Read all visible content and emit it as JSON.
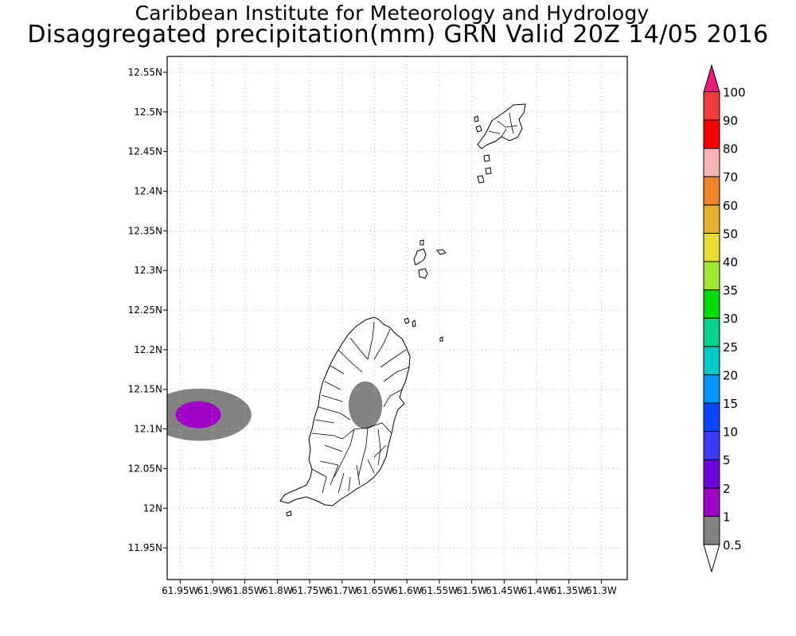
{
  "header": {
    "title": "Caribbean Institute for Meteorology and Hydrology",
    "subtitle": "Disaggregated precipitation(mm) GRN Valid 20Z 14/05 2016"
  },
  "map": {
    "lon_range": [
      -61.97,
      -61.26
    ],
    "lat_range": [
      11.91,
      12.57
    ],
    "lat_ticks": [
      {
        "value": 12.55,
        "label": "12.55N"
      },
      {
        "value": 12.5,
        "label": "12.5N"
      },
      {
        "value": 12.45,
        "label": "12.45N"
      },
      {
        "value": 12.4,
        "label": "12.4N"
      },
      {
        "value": 12.35,
        "label": "12.35N"
      },
      {
        "value": 12.3,
        "label": "12.3N"
      },
      {
        "value": 12.25,
        "label": "12.25N"
      },
      {
        "value": 12.2,
        "label": "12.2N"
      },
      {
        "value": 12.15,
        "label": "12.15N"
      },
      {
        "value": 12.1,
        "label": "12.1N"
      },
      {
        "value": 12.05,
        "label": "12.05N"
      },
      {
        "value": 12.0,
        "label": "12N"
      },
      {
        "value": 11.95,
        "label": "11.95N"
      }
    ],
    "lon_ticks": [
      {
        "value": -61.95,
        "label": "61.95W"
      },
      {
        "value": -61.9,
        "label": "61.9W"
      },
      {
        "value": -61.85,
        "label": "61.85W"
      },
      {
        "value": -61.8,
        "label": "61.8W"
      },
      {
        "value": -61.75,
        "label": "61.75W"
      },
      {
        "value": -61.7,
        "label": "61.7W"
      },
      {
        "value": -61.65,
        "label": "61.65W"
      },
      {
        "value": -61.6,
        "label": "61.6W"
      },
      {
        "value": -61.55,
        "label": "61.55W"
      },
      {
        "value": -61.5,
        "label": "61.5W"
      },
      {
        "value": -61.45,
        "label": "61.45W"
      },
      {
        "value": -61.4,
        "label": "61.4W"
      },
      {
        "value": -61.35,
        "label": "61.35W"
      },
      {
        "value": -61.3,
        "label": "61.3W"
      }
    ],
    "grid": true,
    "precip_areas": [
      {
        "range": "0.5-1",
        "color": "#828282",
        "region": "west-offshore",
        "center": [
          -61.92,
          12.118
        ],
        "radius_deg": [
          0.08,
          0.033
        ]
      },
      {
        "range": "1-2",
        "color": "#a000c8",
        "region": "west-offshore",
        "center": [
          -61.922,
          12.118
        ],
        "radius_deg": [
          0.035,
          0.017
        ]
      },
      {
        "range": "0.5-1",
        "color": "#828282",
        "region": "central-grenada",
        "center": [
          -61.664,
          12.13
        ],
        "radius_deg": [
          0.026,
          0.03
        ]
      }
    ]
  },
  "legend": {
    "position": "right",
    "thresholds": [
      "0.5",
      "1",
      "2",
      "5",
      "10",
      "15",
      "20",
      "25",
      "30",
      "35",
      "40",
      "50",
      "60",
      "70",
      "80",
      "90",
      "100"
    ],
    "colors": [
      "#828282",
      "#a000c8",
      "#6e00dc",
      "#3c3cff",
      "#0a46ff",
      "#0096ff",
      "#00c8c8",
      "#00d28c",
      "#00dc00",
      "#a0e632",
      "#e6dc32",
      "#e6af2d",
      "#f08228",
      "#fab4b4",
      "#fa0000",
      "#f03c3c",
      "#e61e78"
    ]
  }
}
